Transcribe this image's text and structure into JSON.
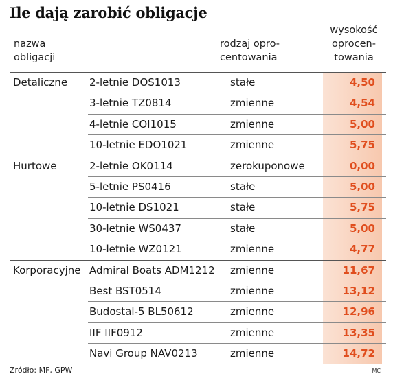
{
  "title": "Ile dają zarobić obligacje",
  "headers": {
    "name": "nazwa obligacji",
    "type": "rodzaj opro- centowania",
    "yield": "wysokość oprocen- towania"
  },
  "groups": [
    {
      "label": "Detaliczne",
      "rows": [
        {
          "name": "2-letnie DOS1013",
          "type": "stałe",
          "value": "4,50"
        },
        {
          "name": "3-letnie TZ0814",
          "type": "zmienne",
          "value": "4,54"
        },
        {
          "name": "4-letnie COI1015",
          "type": "zmienne",
          "value": "5,00"
        },
        {
          "name": "10-letnie EDO1021",
          "type": "zmienne",
          "value": "5,75"
        }
      ]
    },
    {
      "label": "Hurtowe",
      "rows": [
        {
          "name": "2-letnie OK0114",
          "type": "zerokuponowe",
          "value": "0,00"
        },
        {
          "name": "5-letnie PS0416",
          "type": "stałe",
          "value": "5,00"
        },
        {
          "name": "10-letnie DS1021",
          "type": "stałe",
          "value": "5,75"
        },
        {
          "name": "30-letnie WS0437",
          "type": "stałe",
          "value": "5,00"
        },
        {
          "name": "10-letnie WZ0121",
          "type": "zmienne",
          "value": "4,77"
        }
      ]
    },
    {
      "label": "Korporacyjne",
      "rows": [
        {
          "name": "Admiral Boats ADM1212",
          "type": "zmienne",
          "value": "11,67"
        },
        {
          "name": "Best BST0514",
          "type": "zmienne",
          "value": "13,12"
        },
        {
          "name": "Budostal-5 BL50612",
          "type": "zmienne",
          "value": "12,96"
        },
        {
          "name": "IIF IIF0912",
          "type": "zmienne",
          "value": "13,35"
        },
        {
          "name": "Navi Group NAV0213",
          "type": "zmienne",
          "value": "14,72"
        }
      ]
    }
  ],
  "source": "Źródło: MF, GPW",
  "credit": "MC",
  "colors": {
    "value_text": "#e04e1e",
    "value_bg_start": "#fbe2d4",
    "value_bg_end": "#f7c8ae"
  }
}
